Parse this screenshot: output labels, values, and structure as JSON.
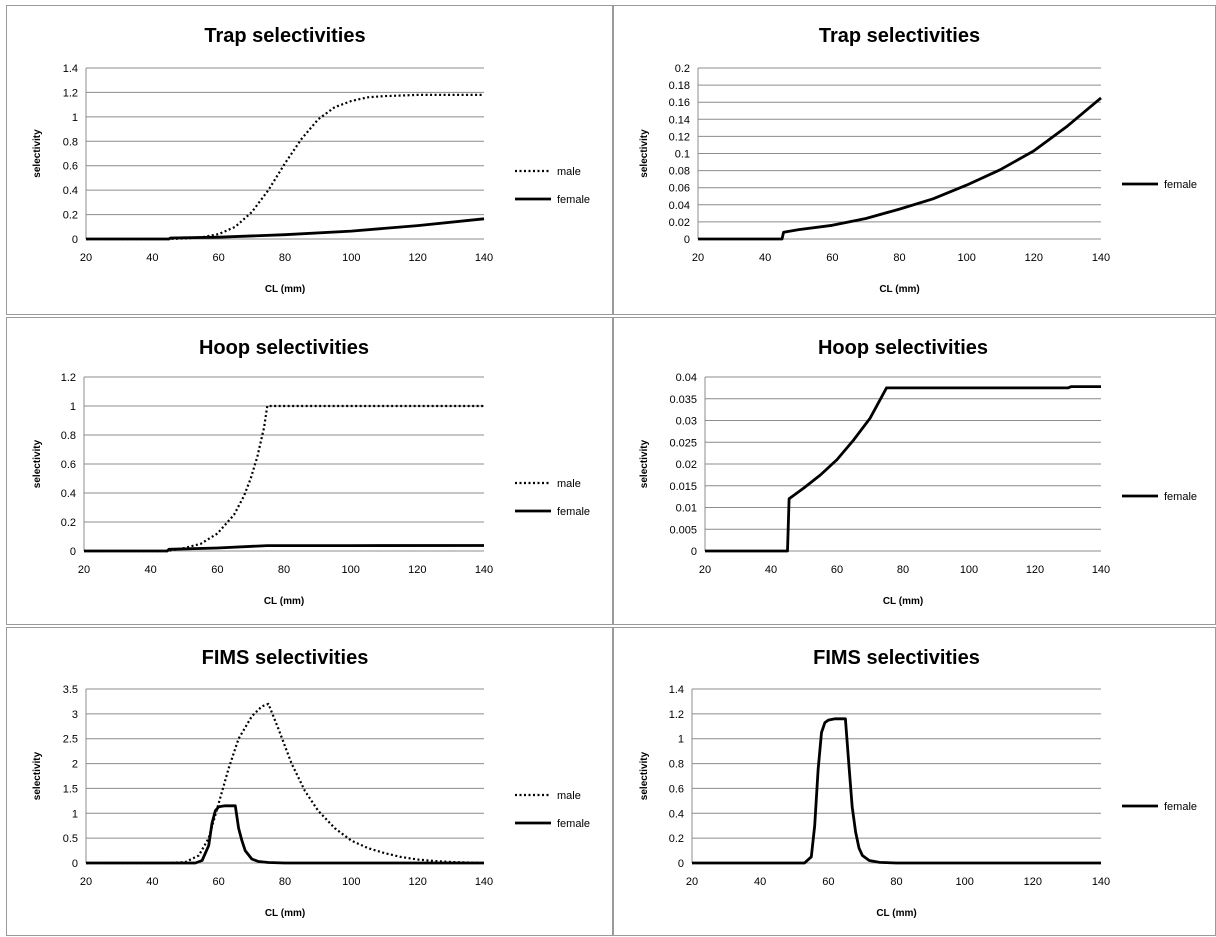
{
  "chart_data": [
    {
      "type": "line",
      "title": "Trap selectivities",
      "xlabel": "CL (mm)",
      "ylabel": "selectivity",
      "xlim": [
        20,
        140
      ],
      "ylim": [
        0,
        1.4
      ],
      "xticks": [
        20,
        40,
        60,
        80,
        100,
        120,
        140
      ],
      "yticks": [
        0,
        0.2,
        0.4,
        0.6,
        0.8,
        1,
        1.2,
        1.4
      ],
      "ytick_labels": [
        "0",
        "0.2",
        "0.4",
        "0.6",
        "0.8",
        "1",
        "1.2",
        "1.4"
      ],
      "grid": true,
      "legend": "right",
      "series": [
        {
          "name": "male",
          "style": "dotted",
          "x": [
            20,
            45,
            50,
            55,
            60,
            65,
            70,
            75,
            80,
            85,
            90,
            95,
            100,
            105,
            110,
            120,
            130,
            140
          ],
          "y": [
            0,
            0,
            0.005,
            0.015,
            0.04,
            0.1,
            0.22,
            0.4,
            0.62,
            0.82,
            0.98,
            1.08,
            1.13,
            1.16,
            1.17,
            1.18,
            1.18,
            1.18
          ]
        },
        {
          "name": "female",
          "style": "solid",
          "x": [
            20,
            45,
            45.5,
            60,
            80,
            100,
            120,
            140
          ],
          "y": [
            0,
            0,
            0.008,
            0.015,
            0.035,
            0.065,
            0.11,
            0.165
          ]
        }
      ]
    },
    {
      "type": "line",
      "title": "Trap selectivities",
      "xlabel": "CL (mm)",
      "ylabel": "selectivity",
      "xlim": [
        20,
        140
      ],
      "ylim": [
        0,
        0.2
      ],
      "xticks": [
        20,
        40,
        60,
        80,
        100,
        120,
        140
      ],
      "yticks": [
        0,
        0.02,
        0.04,
        0.06,
        0.08,
        0.1,
        0.12,
        0.14,
        0.16,
        0.18,
        0.2
      ],
      "ytick_labels": [
        "0",
        "0.02",
        "0.04",
        "0.06",
        "0.08",
        "0.1",
        "0.12",
        "0.14",
        "0.16",
        "0.18",
        "0.2"
      ],
      "grid": true,
      "legend": "right",
      "series": [
        {
          "name": "female",
          "style": "solid",
          "x": [
            20,
            45,
            45.5,
            50,
            60,
            70,
            80,
            90,
            100,
            110,
            120,
            130,
            140
          ],
          "y": [
            0,
            0,
            0.008,
            0.011,
            0.016,
            0.024,
            0.035,
            0.047,
            0.063,
            0.081,
            0.103,
            0.132,
            0.165
          ]
        }
      ]
    },
    {
      "type": "line",
      "title": "Hoop selectivities",
      "xlabel": "CL (mm)",
      "ylabel": "selectivity",
      "xlim": [
        20,
        140
      ],
      "ylim": [
        0,
        1.2
      ],
      "xticks": [
        20,
        40,
        60,
        80,
        100,
        120,
        140
      ],
      "yticks": [
        0,
        0.2,
        0.4,
        0.6,
        0.8,
        1,
        1.2
      ],
      "ytick_labels": [
        "0",
        "0.2",
        "0.4",
        "0.6",
        "0.8",
        "1",
        "1.2"
      ],
      "grid": true,
      "legend": "right",
      "series": [
        {
          "name": "male",
          "style": "dotted",
          "x": [
            20,
            45,
            50,
            55,
            60,
            65,
            68,
            70,
            72,
            74,
            75,
            76,
            80,
            100,
            120,
            140
          ],
          "y": [
            0,
            0,
            0.02,
            0.05,
            0.12,
            0.25,
            0.38,
            0.5,
            0.65,
            0.85,
            1,
            1,
            1,
            1,
            1,
            1
          ]
        },
        {
          "name": "female",
          "style": "solid",
          "x": [
            20,
            45,
            45.5,
            60,
            75,
            100,
            140
          ],
          "y": [
            0,
            0,
            0.012,
            0.021,
            0.0375,
            0.0375,
            0.0378
          ]
        }
      ]
    },
    {
      "type": "line",
      "title": "Hoop selectivities",
      "xlabel": "CL (mm)",
      "ylabel": "selectivity",
      "xlim": [
        20,
        140
      ],
      "ylim": [
        0,
        0.04
      ],
      "xticks": [
        20,
        40,
        60,
        80,
        100,
        120,
        140
      ],
      "yticks": [
        0,
        0.005,
        0.01,
        0.015,
        0.02,
        0.025,
        0.03,
        0.035,
        0.04
      ],
      "ytick_labels": [
        "0",
        "0.005",
        "0.01",
        "0.015",
        "0.02",
        "0.025",
        "0.03",
        "0.035",
        "0.04"
      ],
      "grid": true,
      "legend": "right",
      "series": [
        {
          "name": "female",
          "style": "solid",
          "x": [
            20,
            45,
            45.5,
            50,
            55,
            60,
            65,
            70,
            75,
            130,
            131,
            140
          ],
          "y": [
            0,
            0,
            0.012,
            0.0145,
            0.0175,
            0.021,
            0.0255,
            0.0305,
            0.0375,
            0.0375,
            0.0378,
            0.0378
          ]
        }
      ]
    },
    {
      "type": "line",
      "title": "FIMS selectivities",
      "xlabel": "CL (mm)",
      "ylabel": "selectivity",
      "xlim": [
        20,
        140
      ],
      "ylim": [
        0,
        3.5
      ],
      "xticks": [
        20,
        40,
        60,
        80,
        100,
        120,
        140
      ],
      "yticks": [
        0,
        0.5,
        1,
        1.5,
        2,
        2.5,
        3,
        3.5
      ],
      "ytick_labels": [
        "0",
        "0.5",
        "1",
        "1.5",
        "2",
        "2.5",
        "3",
        "3.5"
      ],
      "grid": true,
      "legend": "right",
      "series": [
        {
          "name": "male",
          "style": "dotted",
          "x": [
            20,
            45,
            50,
            54,
            57,
            60,
            63,
            66,
            70,
            73,
            75,
            78,
            82,
            86,
            90,
            95,
            100,
            105,
            110,
            115,
            120,
            125,
            130,
            135,
            140
          ],
          "y": [
            0,
            0,
            0.02,
            0.15,
            0.5,
            1.2,
            1.9,
            2.5,
            2.95,
            3.15,
            3.2,
            2.7,
            2.0,
            1.45,
            1.05,
            0.7,
            0.45,
            0.3,
            0.2,
            0.12,
            0.07,
            0.04,
            0.02,
            0.01,
            0
          ]
        },
        {
          "name": "female",
          "style": "solid",
          "x": [
            20,
            53,
            55,
            57,
            58,
            59,
            60,
            62,
            64,
            65,
            66,
            67,
            68,
            70,
            72,
            75,
            80,
            140
          ],
          "y": [
            0,
            0,
            0.05,
            0.35,
            0.8,
            1.05,
            1.13,
            1.15,
            1.15,
            1.15,
            0.7,
            0.45,
            0.25,
            0.08,
            0.03,
            0.01,
            0,
            0
          ]
        }
      ]
    },
    {
      "type": "line",
      "title": "FIMS selectivities",
      "xlabel": "CL (mm)",
      "ylabel": "selectivity",
      "xlim": [
        20,
        140
      ],
      "ylim": [
        0,
        1.4
      ],
      "xticks": [
        20,
        40,
        60,
        80,
        100,
        120,
        140
      ],
      "yticks": [
        0,
        0.2,
        0.4,
        0.6,
        0.8,
        1,
        1.2,
        1.4
      ],
      "ytick_labels": [
        "0",
        "0.2",
        "0.4",
        "0.6",
        "0.8",
        "1",
        "1.2",
        "1.4"
      ],
      "grid": true,
      "legend": "right",
      "series": [
        {
          "name": "female",
          "style": "solid",
          "x": [
            20,
            53,
            55,
            56,
            57,
            58,
            59,
            60,
            62,
            64,
            65,
            66,
            67,
            68,
            69,
            70,
            72,
            75,
            80,
            140
          ],
          "y": [
            0,
            0,
            0.05,
            0.3,
            0.75,
            1.05,
            1.13,
            1.15,
            1.16,
            1.16,
            1.16,
            0.8,
            0.45,
            0.25,
            0.12,
            0.06,
            0.02,
            0.005,
            0,
            0
          ]
        }
      ]
    }
  ]
}
